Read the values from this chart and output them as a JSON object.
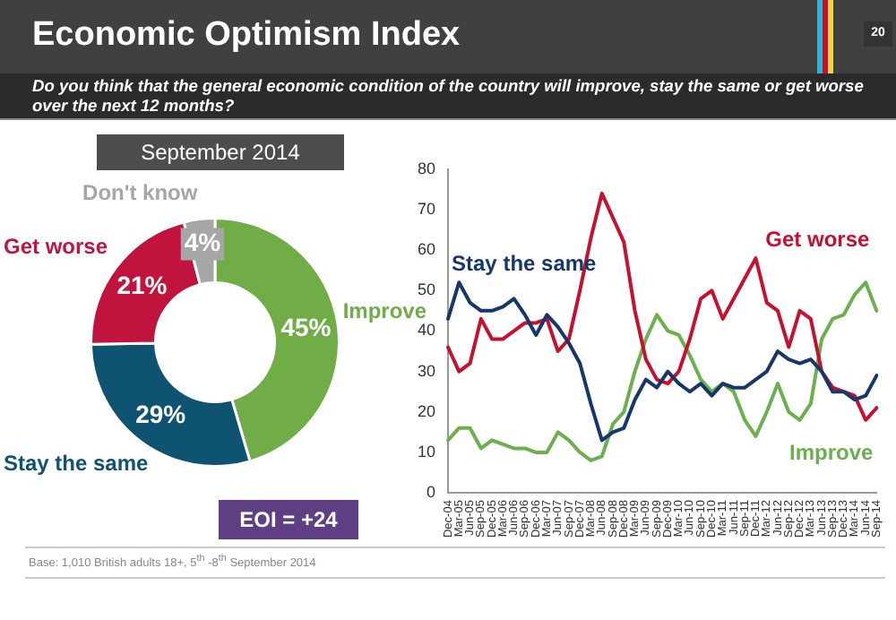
{
  "chart_data": [
    {
      "type": "donut",
      "title": "Economic Optimism Index",
      "subtitle": "Do you think that the general economic condition of the country will improve, stay the same or get worse over the next 12 months?",
      "categories": [
        "Improve",
        "Stay the same",
        "Get worse",
        "Don't know"
      ],
      "values": [
        45,
        29,
        21,
        4
      ],
      "value_labels": [
        "45%",
        "29%",
        "21%",
        "4%"
      ],
      "colors": [
        "#70ad47",
        "#0e5372",
        "#c0143c",
        "#a6a6a6"
      ],
      "annotations": [
        "September 2014",
        "EOI = +24",
        "Base: 1,010 British adults 18+, 5$^{th}$ -8$^{th}$ September 2014",
        "20"
      ]
    },
    {
      "type": "line",
      "categories": [
        "Dec-04",
        "Mar-05",
        "Jun-05",
        "Sep-05",
        "Dec-05",
        "Mar-06",
        "Jun-06",
        "Sep-06",
        "Dec-06",
        "Mar-07",
        "Jun-07",
        "Sep-07",
        "Dec-07",
        "Mar-08",
        "Jun-08",
        "Sep-08",
        "Dec-08",
        "Mar-09",
        "Jun-09",
        "Sep-09",
        "Dec-09",
        "Mar-10",
        "Jun-10",
        "Sep-10",
        "Dec-10",
        "Mar-11",
        "Jun-11",
        "Sep-11",
        "Dec-11",
        "Mar-12",
        "Jun-12",
        "Sep-12",
        "Dec-12",
        "Mar-13",
        "Jun-13",
        "Sep-13",
        "Dec-13",
        "Mar-14",
        "Jun-14",
        "Sep-14"
      ],
      "series": [
        {
          "name": "Stay the same",
          "color": "#16376b",
          "values": [
            43,
            52,
            47,
            45,
            45,
            46,
            48,
            44,
            39,
            44,
            41,
            37,
            32,
            22,
            13,
            15,
            16,
            23,
            28,
            26,
            30,
            27,
            25,
            27,
            24,
            27,
            26,
            26,
            28,
            30,
            35,
            33,
            32,
            33,
            30,
            25,
            25,
            23,
            24,
            29
          ]
        },
        {
          "name": "Get worse",
          "color": "#c8102e",
          "values": [
            36,
            30,
            32,
            43,
            38,
            38,
            40,
            42,
            42,
            43,
            35,
            38,
            50,
            63,
            74,
            68,
            62,
            45,
            33,
            28,
            27,
            30,
            38,
            48,
            50,
            43,
            48,
            53,
            58,
            47,
            45,
            36,
            45,
            43,
            30,
            26,
            25,
            24,
            18,
            21
          ]
        },
        {
          "name": "Improve",
          "color": "#6ab04c",
          "values": [
            13,
            16,
            16,
            11,
            13,
            12,
            11,
            11,
            10,
            10,
            15,
            13,
            10,
            8,
            9,
            17,
            20,
            30,
            38,
            44,
            40,
            39,
            34,
            28,
            25,
            27,
            25,
            18,
            14,
            20,
            27,
            20,
            18,
            22,
            38,
            43,
            44,
            49,
            52,
            45
          ]
        }
      ],
      "ylim": [
        0,
        80
      ],
      "yticks": [
        0,
        10,
        20,
        30,
        40,
        50,
        60,
        70,
        80
      ],
      "grid": false,
      "legend": false,
      "marker": "none",
      "line_style": "solid"
    }
  ]
}
